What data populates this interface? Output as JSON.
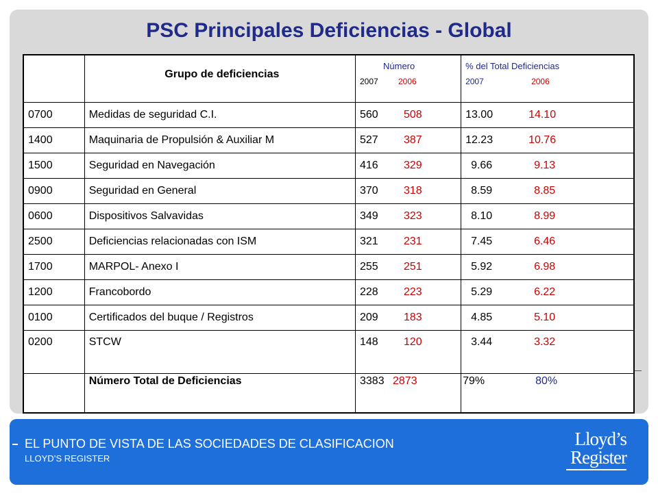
{
  "title": "PSC Principales Deficiencias  - Global",
  "table": {
    "header": {
      "group": "Grupo de deficiencias",
      "numero": "Número",
      "numero_y1": "2007",
      "numero_y2": "2006",
      "pct": "% del Total Deficiencias",
      "pct_y1": "2007",
      "pct_y2": "2006"
    },
    "rows": [
      {
        "code": "0700",
        "name": "Medidas de seguridad C.I.",
        "n2007": "560",
        "n2006": "508",
        "p2007": "13.00",
        "p2006": "14.10"
      },
      {
        "code": "1400",
        "name": "Maquinaria de Propulsión & Auxiliar M",
        "n2007": "527",
        "n2006": "387",
        "p2007": "12.23",
        "p2006": "10.76"
      },
      {
        "code": "1500",
        "name": "Seguridad en Navegación",
        "n2007": "416",
        "n2006": "329",
        "p2007": "9.66",
        "p2006": "9.13"
      },
      {
        "code": "0900",
        "name": "Seguridad en General",
        "n2007": "370",
        "n2006": "318",
        "p2007": "8.59",
        "p2006": "8.85"
      },
      {
        "code": "0600",
        "name": "Dispositivos Salvavidas",
        "n2007": "349",
        "n2006": "323",
        "p2007": "8.10",
        "p2006": "8.99"
      },
      {
        "code": "2500",
        "name": "Deficiencias relacionadas con ISM",
        "n2007": "321",
        "n2006": "231",
        "p2007": "7.45",
        "p2006": "6.46"
      },
      {
        "code": "1700",
        "name": "MARPOL- Anexo I",
        "n2007": "255",
        "n2006": "251",
        "p2007": "5.92",
        "p2006": "6.98"
      },
      {
        "code": "1200",
        "name": "Francobordo",
        "n2007": "228",
        "n2006": "223",
        "p2007": "5.29",
        "p2006": "6.22"
      },
      {
        "code": "0100",
        "name": "Certificados del buque / Registros",
        "n2007": "209",
        "n2006": "183",
        "p2007": "4.85",
        "p2006": "5.10"
      },
      {
        "code": "0200",
        "name": "STCW",
        "n2007": "148",
        "n2006": "120",
        "p2007": "3.44",
        "p2006": "3.32"
      }
    ],
    "total": {
      "label": "Número Total de Deficiencias",
      "n2007": "3383",
      "n2006": "2873",
      "p2007": "79%",
      "p2006": "80%"
    }
  },
  "footer": {
    "line1": "EL PUNTO DE VISTA DE LAS SOCIEDADES DE CLASIFICACION",
    "line2": "LLOYD’S REGISTER"
  },
  "logo": {
    "line1": "Lloyd’s",
    "line2": "Register"
  },
  "colors": {
    "title": "#1f2a8a",
    "year2006": "#cc0000",
    "footer_bg": "#1e6fd9",
    "panel_bg": "#d9d9d9"
  }
}
